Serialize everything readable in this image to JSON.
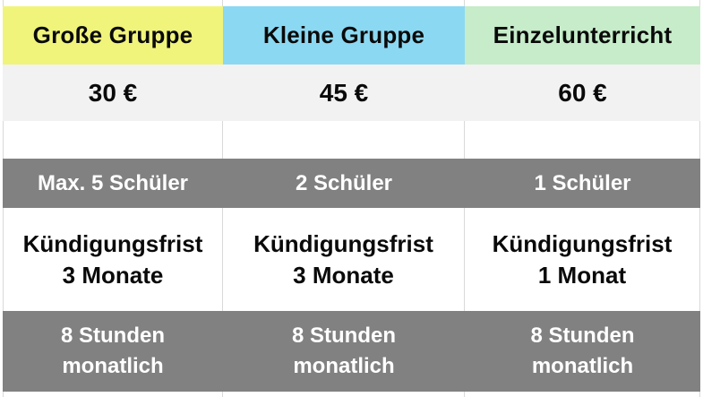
{
  "table": {
    "columns": [
      {
        "header": "Große Gruppe",
        "header_color": "#f0f47b",
        "price": "30 €",
        "students": "Max. 5 Schüler",
        "notice_line1": "Kündigungsfrist",
        "notice_line2": "3 Monate",
        "hours_line1": "8 Stunden",
        "hours_line2": "monatlich"
      },
      {
        "header": "Kleine Gruppe",
        "header_color": "#8bd8f2",
        "price": "45 €",
        "students": "2 Schüler",
        "notice_line1": "Kündigungsfrist",
        "notice_line2": "3 Monate",
        "hours_line1": "8 Stunden",
        "hours_line2": "monatlich"
      },
      {
        "header": "Einzelunterricht",
        "header_color": "#c6ecc9",
        "price": "60 €",
        "students": "1 Schüler",
        "notice_line1": "Kündigungsfrist",
        "notice_line2": "1 Monat",
        "hours_line1": "8 Stunden",
        "hours_line2": "monatlich"
      }
    ],
    "colors": {
      "row_gray": "#818181",
      "row_price_bg": "#f2f2f2",
      "border": "#d9d9d9",
      "text_dark": "#0a0a0a",
      "text_light": "#ffffff",
      "page_bg": "#ffffff"
    }
  }
}
